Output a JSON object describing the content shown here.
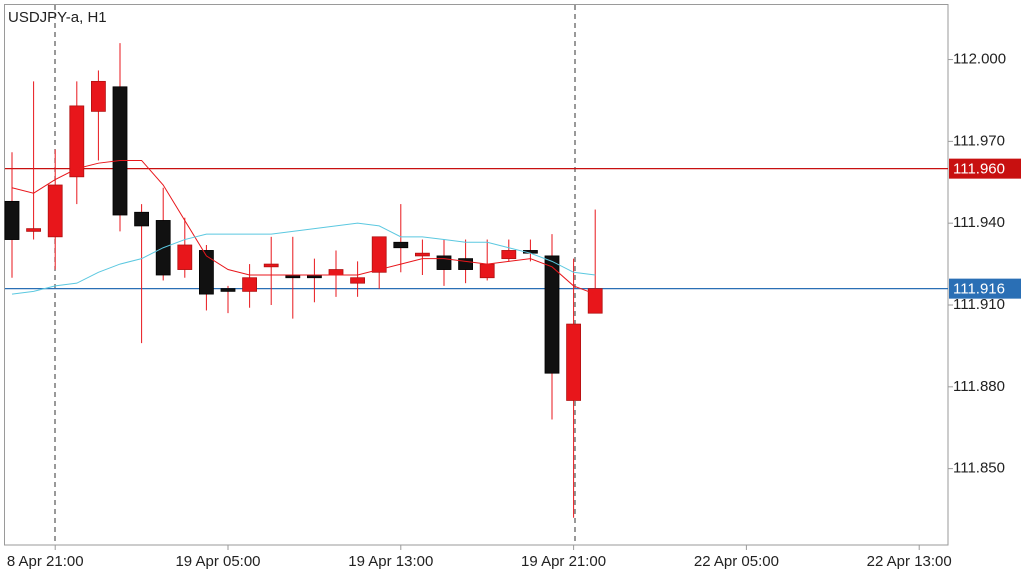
{
  "chart_data": {
    "type": "candlestick",
    "title": "USDJPY-a, H1",
    "categories": [
      null,
      null,
      "8 Apr 21:00",
      null,
      null,
      null,
      null,
      null,
      null,
      null,
      "19 Apr 05:00",
      null,
      null,
      null,
      null,
      null,
      null,
      null,
      "19 Apr 13:00",
      null,
      null,
      null,
      null,
      null,
      null,
      null,
      "19 Apr 21:00",
      null,
      null,
      null,
      null,
      null,
      null,
      null,
      "22 Apr 05:00",
      null,
      null,
      null,
      null,
      null,
      null,
      null,
      "22 Apr 13:00",
      null
    ],
    "open": [
      111.948,
      111.937,
      111.935,
      111.957,
      111.981,
      111.99,
      111.944,
      111.941,
      111.923,
      111.93,
      111.916,
      111.915,
      111.924,
      111.921,
      111.921,
      111.921,
      111.918,
      111.922,
      111.933,
      111.928,
      111.928,
      111.927,
      111.92,
      111.927,
      111.93,
      111.928,
      111.875,
      111.907,
      null,
      null,
      null,
      null,
      null,
      null,
      null,
      null,
      null,
      null,
      null,
      null,
      null,
      null,
      null,
      null
    ],
    "high": [
      111.966,
      111.992,
      111.967,
      111.992,
      111.996,
      112.006,
      111.947,
      111.953,
      111.942,
      111.932,
      111.917,
      111.925,
      111.935,
      111.935,
      111.927,
      111.93,
      111.926,
      111.935,
      111.947,
      111.934,
      111.934,
      111.934,
      111.934,
      111.934,
      111.934,
      111.936,
      111.927,
      111.945,
      null,
      null,
      null,
      null,
      null,
      null,
      null,
      null,
      null,
      null,
      null,
      null,
      null,
      null,
      null,
      null
    ],
    "low": [
      111.92,
      111.934,
      111.923,
      111.947,
      111.963,
      111.937,
      111.896,
      111.919,
      111.92,
      111.908,
      111.907,
      111.909,
      111.91,
      111.905,
      111.911,
      111.913,
      111.913,
      111.916,
      111.922,
      111.921,
      111.917,
      111.918,
      111.919,
      111.926,
      111.926,
      111.868,
      111.832,
      111.907,
      null,
      null,
      null,
      null,
      null,
      null,
      null,
      null,
      null,
      null,
      null,
      null,
      null,
      null,
      null,
      null
    ],
    "close": [
      111.934,
      111.938,
      111.954,
      111.983,
      111.992,
      111.943,
      111.939,
      111.921,
      111.932,
      111.914,
      111.915,
      111.92,
      111.925,
      111.92,
      111.92,
      111.923,
      111.92,
      111.935,
      111.931,
      111.929,
      111.923,
      111.923,
      111.925,
      111.93,
      111.929,
      111.885,
      111.903,
      111.916,
      null,
      null,
      null,
      null,
      null,
      null,
      null,
      null,
      null,
      null,
      null,
      null,
      null,
      null,
      null,
      null
    ],
    "up_color": "#e8161b",
    "down_color": "#111111",
    "wick_color": "#e8161b",
    "lines": [
      {
        "color": "#e8161b",
        "values": [
          111.953,
          111.951,
          111.956,
          111.96,
          111.962,
          111.963,
          111.963,
          111.954,
          111.941,
          111.928,
          111.923,
          111.921,
          111.921,
          111.921,
          111.921,
          111.921,
          111.921,
          111.923,
          111.925,
          111.927,
          111.927,
          111.926,
          111.925,
          111.926,
          111.927,
          111.924,
          111.917,
          111.914,
          null,
          null,
          null,
          null,
          null,
          null,
          null,
          null,
          null,
          null,
          null,
          null,
          null,
          null,
          null,
          null
        ]
      },
      {
        "color": "#5bc8e0",
        "values": [
          111.914,
          111.915,
          111.917,
          111.918,
          111.922,
          111.925,
          111.927,
          111.931,
          111.934,
          111.936,
          111.936,
          111.936,
          111.936,
          111.937,
          111.938,
          111.939,
          111.94,
          111.939,
          111.935,
          111.935,
          111.934,
          111.933,
          111.933,
          111.931,
          111.929,
          111.926,
          111.922,
          111.921,
          null,
          null,
          null,
          null,
          null,
          null,
          null,
          null,
          null,
          null,
          null,
          null,
          null,
          null,
          null,
          null
        ]
      }
    ],
    "hlines": [
      {
        "value": 111.96,
        "label": "111.960",
        "color": "#c81010"
      },
      {
        "value": 111.916,
        "label": "111.916",
        "color": "#2a6fb5"
      }
    ],
    "ylim": [
      111.822,
      112.02
    ],
    "yticks": [
      {
        "value": 112.0,
        "label": "112.000"
      },
      {
        "value": 111.97,
        "label": "111.970"
      },
      {
        "value": 111.94,
        "label": "111.940"
      },
      {
        "value": 111.91,
        "label": "111.910"
      },
      {
        "value": 111.88,
        "label": "111.880"
      },
      {
        "value": 111.85,
        "label": "111.850"
      }
    ]
  }
}
